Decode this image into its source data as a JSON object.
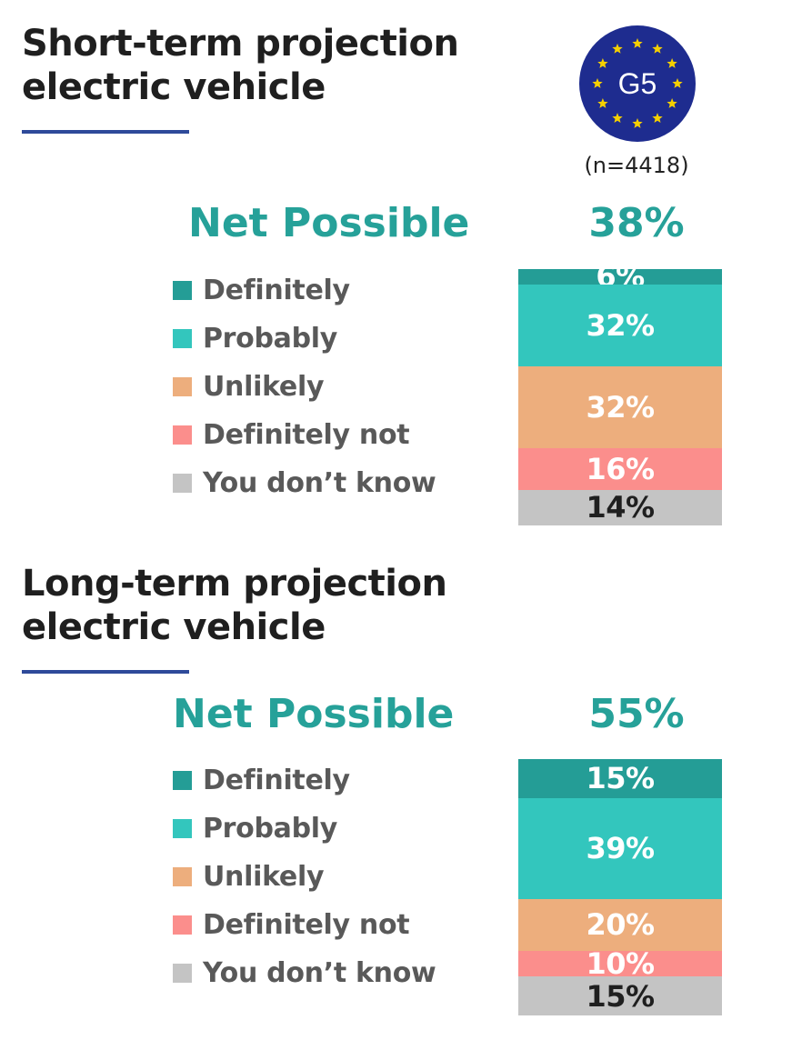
{
  "badge": {
    "label": "G5",
    "icon": "eu-stars-badge-icon",
    "color": "#1e2c8f",
    "star_color": "#f5d000"
  },
  "sample": "(n=4418)",
  "colors": {
    "definitely": "#249d96",
    "probably": "#33c6bd",
    "unlikely": "#edae7d",
    "definitely_not": "#fb8e8c",
    "dont_know": "#c4c4c4"
  },
  "chart_data": [
    {
      "type": "bar",
      "stacked": true,
      "title": "Short-term projection electric vehicle",
      "title_lines": [
        "Short-term projection",
        "electric vehicle"
      ],
      "net_label": "Net Possible",
      "net_value": "38%",
      "categories": [
        "G5"
      ],
      "series": [
        {
          "key": "definitely",
          "name": "Definitely",
          "values": [
            6
          ],
          "label": "6%"
        },
        {
          "key": "probably",
          "name": "Probably",
          "values": [
            32
          ],
          "label": "32%"
        },
        {
          "key": "unlikely",
          "name": "Unlikely",
          "values": [
            32
          ],
          "label": "32%"
        },
        {
          "key": "definitely_not",
          "name": "Definitely not",
          "values": [
            16
          ],
          "label": "16%"
        },
        {
          "key": "dont_know",
          "name": "You don’t know",
          "values": [
            14
          ],
          "label": "14%"
        }
      ],
      "legend": "left"
    },
    {
      "type": "bar",
      "stacked": true,
      "title": "Long-term projection electric vehicle",
      "title_lines": [
        "Long-term projection",
        "electric vehicle"
      ],
      "net_label": "Net Possible",
      "net_value": "55%",
      "categories": [
        "G5"
      ],
      "series": [
        {
          "key": "definitely",
          "name": "Definitely",
          "values": [
            15
          ],
          "label": "15%"
        },
        {
          "key": "probably",
          "name": "Probably",
          "values": [
            39
          ],
          "label": "39%"
        },
        {
          "key": "unlikely",
          "name": "Unlikely",
          "values": [
            20
          ],
          "label": "20%"
        },
        {
          "key": "definitely_not",
          "name": "Definitely not",
          "values": [
            10
          ],
          "label": "10%"
        },
        {
          "key": "dont_know",
          "name": "You don’t know",
          "values": [
            15
          ],
          "label": "15%"
        }
      ],
      "legend": "left"
    }
  ]
}
